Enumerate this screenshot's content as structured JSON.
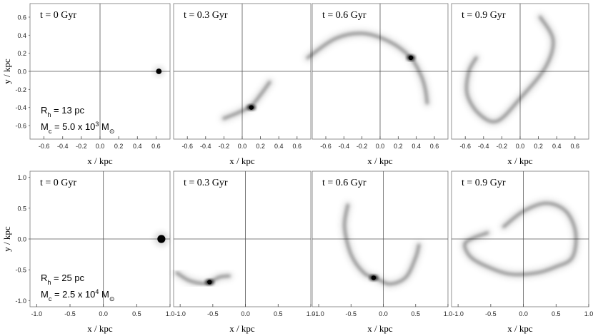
{
  "chart_data": [
    {
      "type": "scatter",
      "row": "top",
      "xlabel": "x / kpc",
      "ylabel": "y / kpc",
      "xlim": [
        -0.75,
        0.75
      ],
      "ylim": [
        -0.75,
        0.75
      ],
      "xticks": [
        "-0.6",
        "-0.4",
        "-0.2",
        "0.0",
        "0.2",
        "0.4",
        "0.6"
      ],
      "yticks": [
        "0.6",
        "0.4",
        "0.2",
        "0.0",
        "-0.2",
        "-0.4",
        "-0.6"
      ],
      "params": {
        "rh": "R_h = 13 pc",
        "mc": "M_c = 5.0 x 10^3 M_sun"
      },
      "panels": [
        {
          "time": "t = 0 Gyr",
          "cluster": {
            "x": 0.63,
            "y": 0.0,
            "radius": 0.03
          }
        },
        {
          "time": "t = 0.3 Gyr",
          "stream_path": [
            [
              -0.2,
              -0.52
            ],
            [
              -0.05,
              -0.46
            ],
            [
              0.1,
              -0.38
            ],
            [
              0.2,
              -0.26
            ],
            [
              0.3,
              -0.12
            ]
          ],
          "core": {
            "x": 0.1,
            "y": -0.4
          }
        },
        {
          "time": "t = 0.6 Gyr",
          "stream_path": [
            [
              -0.8,
              0.15
            ],
            [
              -0.5,
              0.36
            ],
            [
              -0.2,
              0.42
            ],
            [
              0.1,
              0.33
            ],
            [
              0.33,
              0.16
            ],
            [
              0.45,
              -0.04
            ],
            [
              0.5,
              -0.2
            ],
            [
              0.52,
              -0.35
            ]
          ],
          "core": {
            "x": 0.34,
            "y": 0.15
          }
        },
        {
          "time": "t = 0.9 Gyr",
          "stream_path": [
            [
              0.22,
              0.6
            ],
            [
              0.36,
              0.35
            ],
            [
              0.28,
              0.05
            ],
            [
              0.0,
              -0.3
            ],
            [
              -0.25,
              -0.55
            ],
            [
              -0.45,
              -0.47
            ],
            [
              -0.58,
              -0.25
            ],
            [
              -0.56,
              0.0
            ],
            [
              -0.48,
              0.15
            ]
          ],
          "core": null
        }
      ]
    },
    {
      "type": "scatter",
      "row": "bottom",
      "xlabel": "x / kpc",
      "ylabel": "y / kpc",
      "xlim": [
        -1.1,
        1.0
      ],
      "ylim": [
        -1.1,
        1.1
      ],
      "xticks": [
        "-1.0",
        "-0.5",
        "0.0",
        "0.5",
        "1.0"
      ],
      "yticks": [
        "1.0",
        "0.5",
        "0.0",
        "-0.5",
        "-1.0"
      ],
      "params": {
        "rh": "R_h = 25 pc",
        "mc": "M_c = 2.5 x 10^4 M_sun"
      },
      "panels": [
        {
          "time": "t = 0 Gyr",
          "cluster": {
            "x": 0.87,
            "y": 0.0,
            "radius": 0.06
          }
        },
        {
          "time": "t = 0.3 Gyr",
          "stream_path": [
            [
              -1.05,
              -0.55
            ],
            [
              -0.85,
              -0.68
            ],
            [
              -0.6,
              -0.72
            ],
            [
              -0.4,
              -0.62
            ],
            [
              -0.25,
              -0.6
            ]
          ],
          "core": {
            "x": -0.55,
            "y": -0.7
          }
        },
        {
          "time": "t = 0.6 Gyr",
          "stream_path": [
            [
              -0.55,
              0.55
            ],
            [
              -0.6,
              0.2
            ],
            [
              -0.5,
              -0.25
            ],
            [
              -0.3,
              -0.55
            ],
            [
              -0.12,
              -0.63
            ],
            [
              0.1,
              -0.73
            ],
            [
              0.35,
              -0.62
            ],
            [
              0.5,
              -0.3
            ],
            [
              0.55,
              -0.1
            ]
          ],
          "core": {
            "x": -0.15,
            "y": -0.63
          }
        },
        {
          "time": "t = 0.9 Gyr",
          "stream_path": [
            [
              -0.3,
              0.2
            ],
            [
              0.0,
              0.45
            ],
            [
              0.35,
              0.58
            ],
            [
              0.65,
              0.45
            ],
            [
              0.8,
              0.1
            ],
            [
              0.75,
              -0.3
            ],
            [
              0.5,
              -0.45
            ],
            [
              0.2,
              -0.55
            ],
            [
              -0.2,
              -0.57
            ],
            [
              -0.55,
              -0.45
            ],
            [
              -0.8,
              -0.3
            ],
            [
              -0.9,
              -0.1
            ],
            [
              -0.8,
              0.0
            ],
            [
              -0.55,
              0.1
            ]
          ],
          "core": null
        }
      ]
    }
  ]
}
